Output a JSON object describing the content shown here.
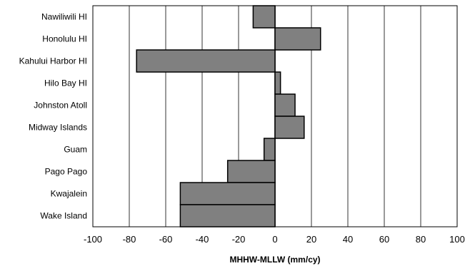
{
  "chart_data": {
    "type": "bar",
    "orientation": "horizontal",
    "categories": [
      "Nawiliwili HI",
      "Honolulu HI",
      "Kahului Harbor HI",
      "Hilo Bay HI",
      "Johnston Atoll",
      "Midway Islands",
      "Guam",
      "Pago Pago",
      "Kwajalein",
      "Wake Island"
    ],
    "values": [
      -12,
      25,
      -76,
      3,
      11,
      16,
      -6,
      -26,
      -52,
      -52
    ],
    "title": "",
    "xlabel": "MHHW-MLLW (mm/cy)",
    "ylabel": "",
    "xlim": [
      -100,
      100
    ],
    "xticks": [
      -100,
      -80,
      -60,
      -40,
      -20,
      0,
      20,
      40,
      60,
      80,
      100
    ],
    "xtick_labels": [
      "-100",
      "-80",
      "-60",
      "-40",
      "-20",
      "0",
      "20",
      "40",
      "60",
      "80",
      "100"
    ],
    "grid": "vertical",
    "legend": "none",
    "bar_color": "#808080"
  }
}
